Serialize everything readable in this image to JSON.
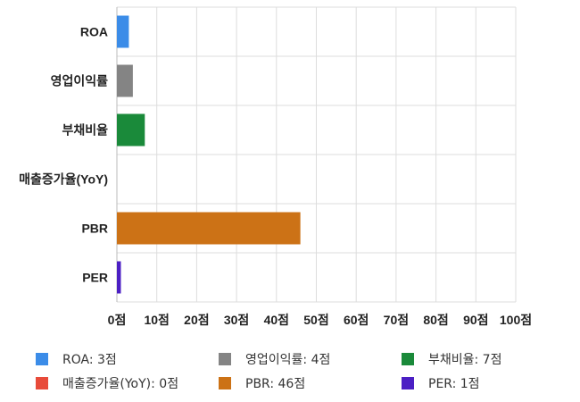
{
  "chart_data": {
    "type": "bar",
    "orientation": "horizontal",
    "categories": [
      "ROA",
      "영업이익률",
      "부채비율",
      "매출증가율(YoY)",
      "PBR",
      "PER"
    ],
    "values": [
      3,
      4,
      7,
      0,
      46,
      1
    ],
    "colors": [
      "#3b8ce8",
      "#848484",
      "#1a8a3a",
      "#e84b3a",
      "#cc7216",
      "#4b1fc4"
    ],
    "xlim": [
      0,
      100
    ],
    "xticks": [
      0,
      10,
      20,
      30,
      40,
      50,
      60,
      70,
      80,
      90,
      100
    ],
    "tick_suffix": "점",
    "grid": true,
    "legend_position": "bottom"
  },
  "legend": [
    {
      "label": "ROA: 3점",
      "color": "#3b8ce8"
    },
    {
      "label": "영업이익률: 4점",
      "color": "#848484"
    },
    {
      "label": "부채비율: 7점",
      "color": "#1a8a3a"
    },
    {
      "label": "매출증가율(YoY): 0점",
      "color": "#e84b3a"
    },
    {
      "label": "PBR: 46점",
      "color": "#cc7216"
    },
    {
      "label": "PER: 1점",
      "color": "#4b1fc4"
    }
  ]
}
